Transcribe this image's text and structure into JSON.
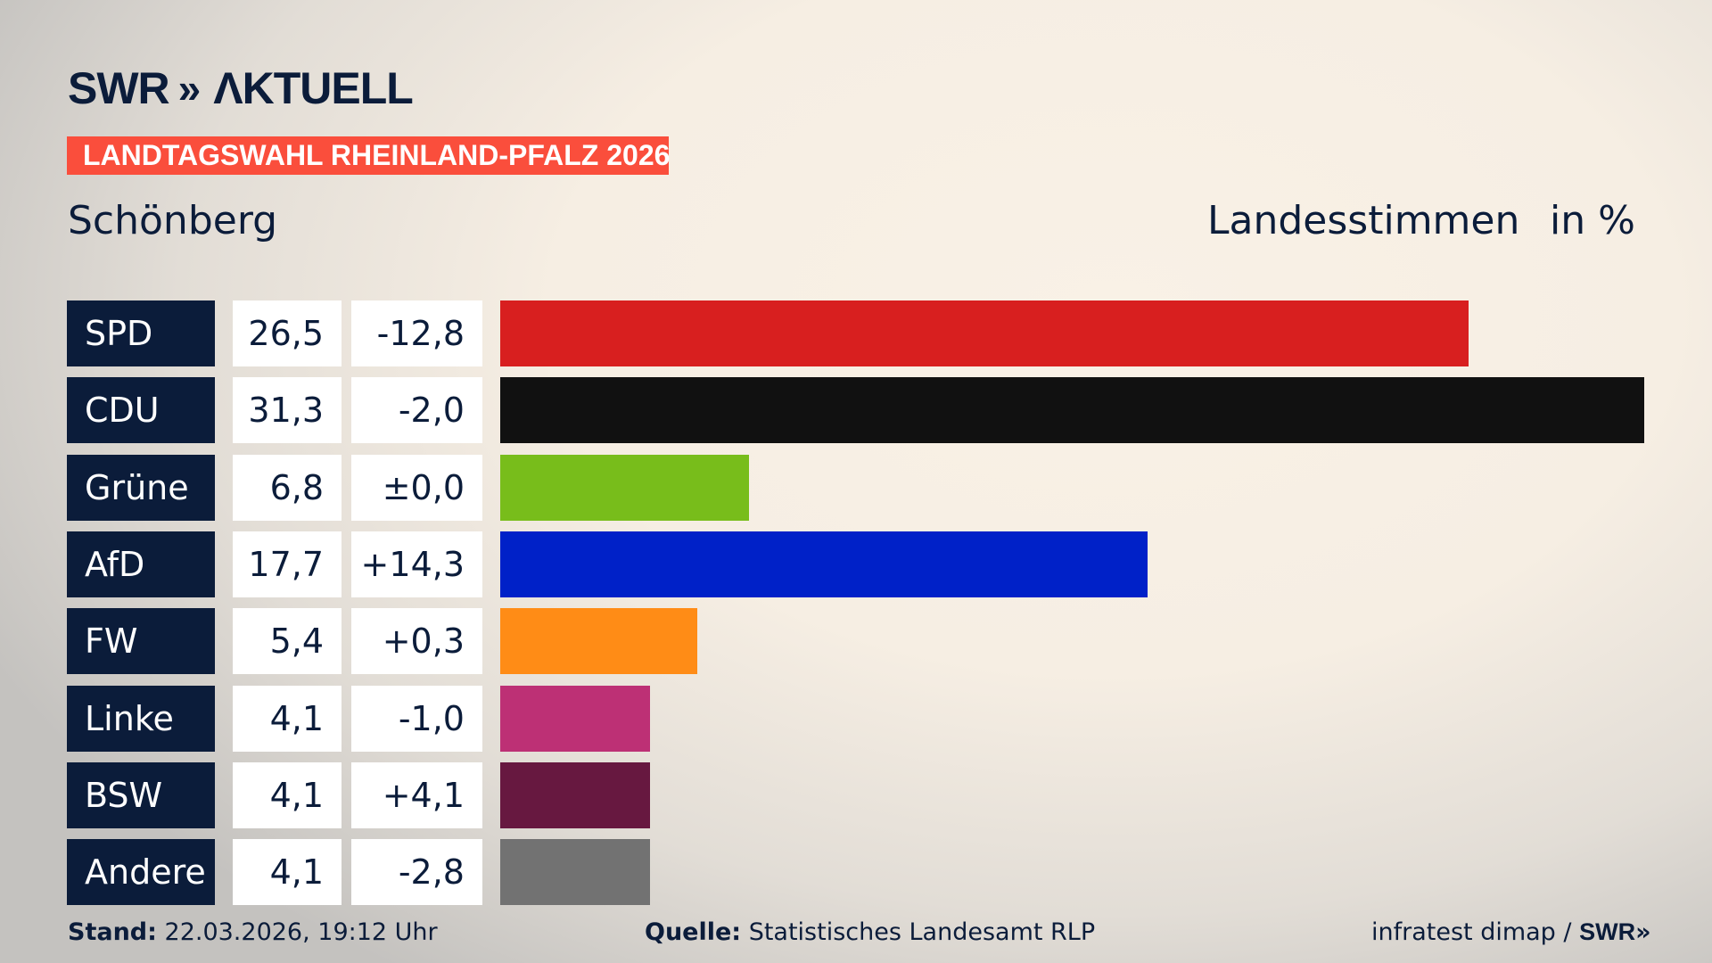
{
  "header": {
    "logo": "SWR AKTUELL",
    "badge": "LANDTAGSWAHL RHEINLAND-PFALZ 2026",
    "place": "Schönberg",
    "measure": "Landesstimmen",
    "unit": "in %"
  },
  "chart_data": {
    "type": "bar",
    "orientation": "horizontal",
    "title": "Schönberg",
    "xlabel": "Landesstimmen",
    "unit": "in %",
    "categories": [
      "SPD",
      "CDU",
      "Grüne",
      "AfD",
      "FW",
      "Linke",
      "BSW",
      "Andere"
    ],
    "values": [
      "26,5",
      "31,3",
      "6,8",
      "17,7",
      "5,4",
      "4,1",
      "4,1",
      "4,1"
    ],
    "values_numeric": [
      26.5,
      31.3,
      6.8,
      17.7,
      5.4,
      4.1,
      4.1,
      4.1
    ],
    "changes": [
      "-12,8",
      "-2,0",
      "±0,0",
      "+14,3",
      "+0,3",
      "-1,0",
      "+4,1",
      "-2,8"
    ],
    "colors": [
      "#d81f1f",
      "#111111",
      "#78bd1b",
      "#0021c8",
      "#ff8c16",
      "#bd3075",
      "#671840",
      "#727272"
    ],
    "xlim": [
      0,
      31.3
    ]
  },
  "footer": {
    "stand_label": "Stand:",
    "stand": "22.03.2026, 19:12 Uhr",
    "source_label": "Quelle:",
    "source": "Statistisches Landesamt RLP",
    "credit": "infratest dimap /",
    "credit_logo": "SWR"
  }
}
